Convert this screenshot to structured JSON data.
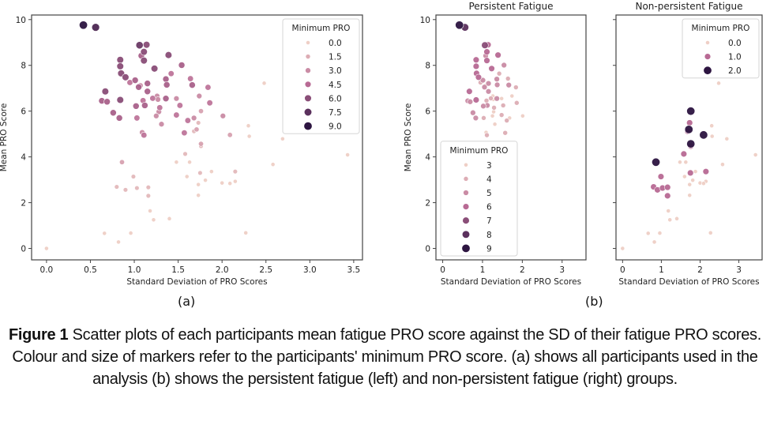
{
  "caption": {
    "label": "Figure 1",
    "text": " Scatter plots of each participants mean fatigue PRO score against the SD of their fatigue PRO scores. Colour and size of markers refer to the participants' minimum PRO score. (a) shows all participants used in the analysis (b) shows the persistent fatigue (left) and non-persistent fatigue (right) groups."
  },
  "panel_labels": {
    "a": "(a)",
    "b": "(b)"
  },
  "colors": {
    "palette_low": "#efc7c0",
    "palette_high": "#2c1640",
    "axis": "#333333"
  },
  "chart_data": [
    {
      "id": "a",
      "type": "scatter",
      "title": "",
      "xlabel": "Standard Deviation of PRO Scores",
      "ylabel": "Mean PRO Score",
      "xlim": [
        -0.17,
        3.6
      ],
      "ylim": [
        -0.5,
        10.2
      ],
      "xticks": [
        0.0,
        0.5,
        1.0,
        1.5,
        2.0,
        2.5,
        3.0,
        3.5
      ],
      "xtick_labels": [
        "0.0",
        "0.5",
        "1.0",
        "1.5",
        "2.0",
        "2.5",
        "3.0",
        "3.5"
      ],
      "yticks": [
        0,
        2,
        4,
        6,
        8,
        10
      ],
      "ytick_labels": [
        "0",
        "2",
        "4",
        "6",
        "8",
        "10"
      ],
      "grid": false,
      "legend": {
        "title": "Minimum PRO",
        "placement": "top-right",
        "entries": [
          "0.0",
          "1.5",
          "3.0",
          "4.5",
          "6.0",
          "7.5",
          "9.0"
        ],
        "values": [
          0,
          1.5,
          3,
          4.5,
          6,
          7.5,
          9
        ]
      },
      "hue_range": [
        0,
        9
      ],
      "series": [
        {
          "name": "participants",
          "points": [
            {
              "x": 0.42,
              "y": 9.76,
              "min": 9
            },
            {
              "x": 0.56,
              "y": 9.66,
              "min": 8
            },
            {
              "x": 1.06,
              "y": 8.88,
              "min": 7
            },
            {
              "x": 1.14,
              "y": 8.9,
              "min": 6
            },
            {
              "x": 1.11,
              "y": 8.59,
              "min": 6
            },
            {
              "x": 1.08,
              "y": 8.42,
              "min": 5
            },
            {
              "x": 1.11,
              "y": 8.21,
              "min": 6
            },
            {
              "x": 1.39,
              "y": 8.45,
              "min": 6
            },
            {
              "x": 0.84,
              "y": 8.24,
              "min": 6
            },
            {
              "x": 0.84,
              "y": 7.96,
              "min": 6
            },
            {
              "x": 0.85,
              "y": 7.65,
              "min": 6
            },
            {
              "x": 0.9,
              "y": 7.48,
              "min": 6
            },
            {
              "x": 1.23,
              "y": 7.86,
              "min": 6
            },
            {
              "x": 1.54,
              "y": 8.01,
              "min": 5
            },
            {
              "x": 1.42,
              "y": 7.64,
              "min": 4
            },
            {
              "x": 0.95,
              "y": 7.25,
              "min": 4
            },
            {
              "x": 1.01,
              "y": 7.35,
              "min": 5
            },
            {
              "x": 1.05,
              "y": 7.05,
              "min": 5
            },
            {
              "x": 1.07,
              "y": 7.12,
              "min": 3
            },
            {
              "x": 1.15,
              "y": 7.21,
              "min": 5
            },
            {
              "x": 1.36,
              "y": 7.4,
              "min": 5
            },
            {
              "x": 1.37,
              "y": 7.15,
              "min": 5
            },
            {
              "x": 1.64,
              "y": 7.42,
              "min": 4
            },
            {
              "x": 1.66,
              "y": 7.14,
              "min": 5
            },
            {
              "x": 1.84,
              "y": 7.04,
              "min": 4
            },
            {
              "x": 0.67,
              "y": 6.86,
              "min": 6
            },
            {
              "x": 0.63,
              "y": 6.45,
              "min": 5
            },
            {
              "x": 0.69,
              "y": 6.41,
              "min": 5
            },
            {
              "x": 0.84,
              "y": 6.49,
              "min": 6
            },
            {
              "x": 1.15,
              "y": 6.86,
              "min": 5
            },
            {
              "x": 1.1,
              "y": 6.46,
              "min": 4
            },
            {
              "x": 1.12,
              "y": 6.25,
              "min": 5
            },
            {
              "x": 1.02,
              "y": 6.22,
              "min": 5
            },
            {
              "x": 1.21,
              "y": 6.56,
              "min": 4
            },
            {
              "x": 1.26,
              "y": 6.66,
              "min": 3
            },
            {
              "x": 1.27,
              "y": 6.51,
              "min": 3
            },
            {
              "x": 1.29,
              "y": 6.15,
              "min": 4
            },
            {
              "x": 1.28,
              "y": 5.97,
              "min": 3
            },
            {
              "x": 1.25,
              "y": 5.79,
              "min": 3
            },
            {
              "x": 1.31,
              "y": 5.43,
              "min": 3
            },
            {
              "x": 1.36,
              "y": 6.55,
              "min": 5
            },
            {
              "x": 1.48,
              "y": 6.55,
              "min": 3
            },
            {
              "x": 1.52,
              "y": 6.25,
              "min": 4
            },
            {
              "x": 1.48,
              "y": 5.83,
              "min": 4
            },
            {
              "x": 1.74,
              "y": 6.66,
              "min": 3
            },
            {
              "x": 1.86,
              "y": 6.36,
              "min": 4
            },
            {
              "x": 1.76,
              "y": 6.0,
              "min": 2
            },
            {
              "x": 2.01,
              "y": 5.79,
              "min": 3
            },
            {
              "x": 0.76,
              "y": 5.93,
              "min": 5
            },
            {
              "x": 0.83,
              "y": 5.7,
              "min": 5
            },
            {
              "x": 1.03,
              "y": 5.7,
              "min": 4
            },
            {
              "x": 1.61,
              "y": 5.59,
              "min": 4
            },
            {
              "x": 1.68,
              "y": 5.7,
              "min": 3
            },
            {
              "x": 1.73,
              "y": 5.49,
              "min": 1
            },
            {
              "x": 1.71,
              "y": 5.2,
              "min": 2
            },
            {
              "x": 1.68,
              "y": 5.12,
              "min": 1
            },
            {
              "x": 1.57,
              "y": 5.05,
              "min": 4
            },
            {
              "x": 1.09,
              "y": 5.07,
              "min": 3
            },
            {
              "x": 1.11,
              "y": 4.95,
              "min": 4
            },
            {
              "x": 2.09,
              "y": 4.96,
              "min": 2
            },
            {
              "x": 2.3,
              "y": 5.36,
              "min": 0
            },
            {
              "x": 2.31,
              "y": 4.9,
              "min": 0
            },
            {
              "x": 2.48,
              "y": 7.22,
              "min": 0
            },
            {
              "x": 2.69,
              "y": 4.79,
              "min": 0
            },
            {
              "x": 3.43,
              "y": 4.09,
              "min": 0
            },
            {
              "x": 2.58,
              "y": 3.67,
              "min": 0
            },
            {
              "x": 1.76,
              "y": 4.57,
              "min": 2
            },
            {
              "x": 1.76,
              "y": 4.47,
              "min": 1
            },
            {
              "x": 1.58,
              "y": 4.13,
              "min": 1
            },
            {
              "x": 0.86,
              "y": 3.77,
              "min": 2
            },
            {
              "x": 1.48,
              "y": 3.77,
              "min": 0
            },
            {
              "x": 1.63,
              "y": 3.77,
              "min": 0
            },
            {
              "x": 1.75,
              "y": 3.3,
              "min": 1
            },
            {
              "x": 1.88,
              "y": 3.36,
              "min": 0
            },
            {
              "x": 2.15,
              "y": 3.36,
              "min": 1
            },
            {
              "x": 0.99,
              "y": 3.14,
              "min": 1
            },
            {
              "x": 1.6,
              "y": 3.14,
              "min": 0
            },
            {
              "x": 1.81,
              "y": 2.98,
              "min": 0
            },
            {
              "x": 2.15,
              "y": 2.93,
              "min": 0
            },
            {
              "x": 2.0,
              "y": 2.86,
              "min": 0
            },
            {
              "x": 2.09,
              "y": 2.84,
              "min": 0
            },
            {
              "x": 1.73,
              "y": 2.79,
              "min": 0
            },
            {
              "x": 0.8,
              "y": 2.69,
              "min": 1
            },
            {
              "x": 0.9,
              "y": 2.56,
              "min": 1
            },
            {
              "x": 1.03,
              "y": 2.64,
              "min": 1
            },
            {
              "x": 1.16,
              "y": 2.67,
              "min": 1
            },
            {
              "x": 1.16,
              "y": 2.3,
              "min": 1
            },
            {
              "x": 1.73,
              "y": 2.32,
              "min": 0
            },
            {
              "x": 1.18,
              "y": 1.64,
              "min": 0
            },
            {
              "x": 1.22,
              "y": 1.25,
              "min": 0
            },
            {
              "x": 1.4,
              "y": 1.3,
              "min": 0
            },
            {
              "x": 0.66,
              "y": 0.66,
              "min": 0
            },
            {
              "x": 0.96,
              "y": 0.67,
              "min": 0
            },
            {
              "x": 2.27,
              "y": 0.68,
              "min": 0
            },
            {
              "x": 0.82,
              "y": 0.28,
              "min": 0
            },
            {
              "x": 0.0,
              "y": 0.0,
              "min": 0
            }
          ]
        }
      ]
    },
    {
      "id": "b-left",
      "type": "scatter",
      "title": "Persistent Fatigue",
      "xlabel": "Standard Deviation of PRO Scores",
      "ylabel": "Mean PRO Score",
      "xlim": [
        -0.17,
        3.6
      ],
      "ylim": [
        -0.5,
        10.2
      ],
      "xticks": [
        0,
        1,
        2,
        3
      ],
      "xtick_labels": [
        "0",
        "1",
        "2",
        "3"
      ],
      "yticks": [
        0,
        2,
        4,
        6,
        8,
        10
      ],
      "ytick_labels": [
        "0",
        "2",
        "4",
        "6",
        "8",
        "10"
      ],
      "grid": false,
      "legend": {
        "title": "Minimum PRO",
        "placement": "bottom-left",
        "entries": [
          "3",
          "4",
          "5",
          "6",
          "7",
          "8",
          "9"
        ],
        "values": [
          3,
          4,
          5,
          6,
          7,
          8,
          9
        ]
      },
      "hue_range": [
        3,
        9
      ],
      "filter": {
        "min_gte": 3
      }
    },
    {
      "id": "b-right",
      "type": "scatter",
      "title": "Non-persistent Fatigue",
      "xlabel": "Standard Deviation of PRO Scores",
      "ylabel": "",
      "xlim": [
        -0.17,
        3.6
      ],
      "ylim": [
        -0.5,
        10.2
      ],
      "xticks": [
        0,
        1,
        2,
        3
      ],
      "xtick_labels": [
        "0",
        "1",
        "2",
        "3"
      ],
      "yticks": [
        0,
        2,
        4,
        6,
        8,
        10
      ],
      "ytick_labels": [],
      "grid": false,
      "legend": {
        "title": "Minimum PRO",
        "placement": "top-right",
        "entries": [
          "0.0",
          "1.0",
          "2.0"
        ],
        "values": [
          0,
          1,
          2
        ]
      },
      "hue_range": [
        0,
        2
      ],
      "filter": {
        "min_lte": 2
      }
    }
  ]
}
